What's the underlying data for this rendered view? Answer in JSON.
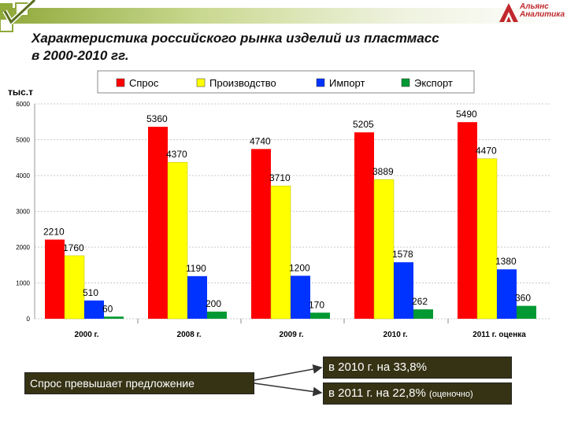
{
  "header": {
    "title_line1": "Характеристика российского рынка изделий из пластмасс",
    "title_line2": "в 2000-2010 гг."
  },
  "logo": {
    "line1": "Альянс",
    "line2": "Аналитика",
    "mark_color": "#c0282d"
  },
  "chart_data": {
    "type": "bar",
    "ylabel": "тыс.т",
    "ylim": [
      0,
      6000
    ],
    "yticks": [
      0,
      1000,
      2000,
      3000,
      4000,
      5000,
      6000
    ],
    "categories": [
      "2000 г.",
      "2008 г.",
      "2009 г.",
      "2010 г.",
      "2011 г. оценка"
    ],
    "series": [
      {
        "name": "Спрос",
        "color": "#ff0000",
        "values": [
          2210,
          5360,
          4740,
          5205,
          5490
        ]
      },
      {
        "name": "Производство",
        "color": "#ffff00",
        "values": [
          1760,
          4370,
          3710,
          3889,
          4470
        ]
      },
      {
        "name": "Импорт",
        "color": "#0033ff",
        "values": [
          510,
          1190,
          1200,
          1578,
          1380
        ]
      },
      {
        "name": "Экспорт",
        "color": "#009933",
        "values": [
          60,
          200,
          170,
          262,
          360
        ]
      }
    ],
    "legend_position": "top"
  },
  "callouts": {
    "main": "Спрос превышает предложение",
    "item1": "в 2010 г. на 33,8%",
    "item2_main": "в 2011 г. на 22,8%",
    "item2_note": "(оценочно)"
  }
}
